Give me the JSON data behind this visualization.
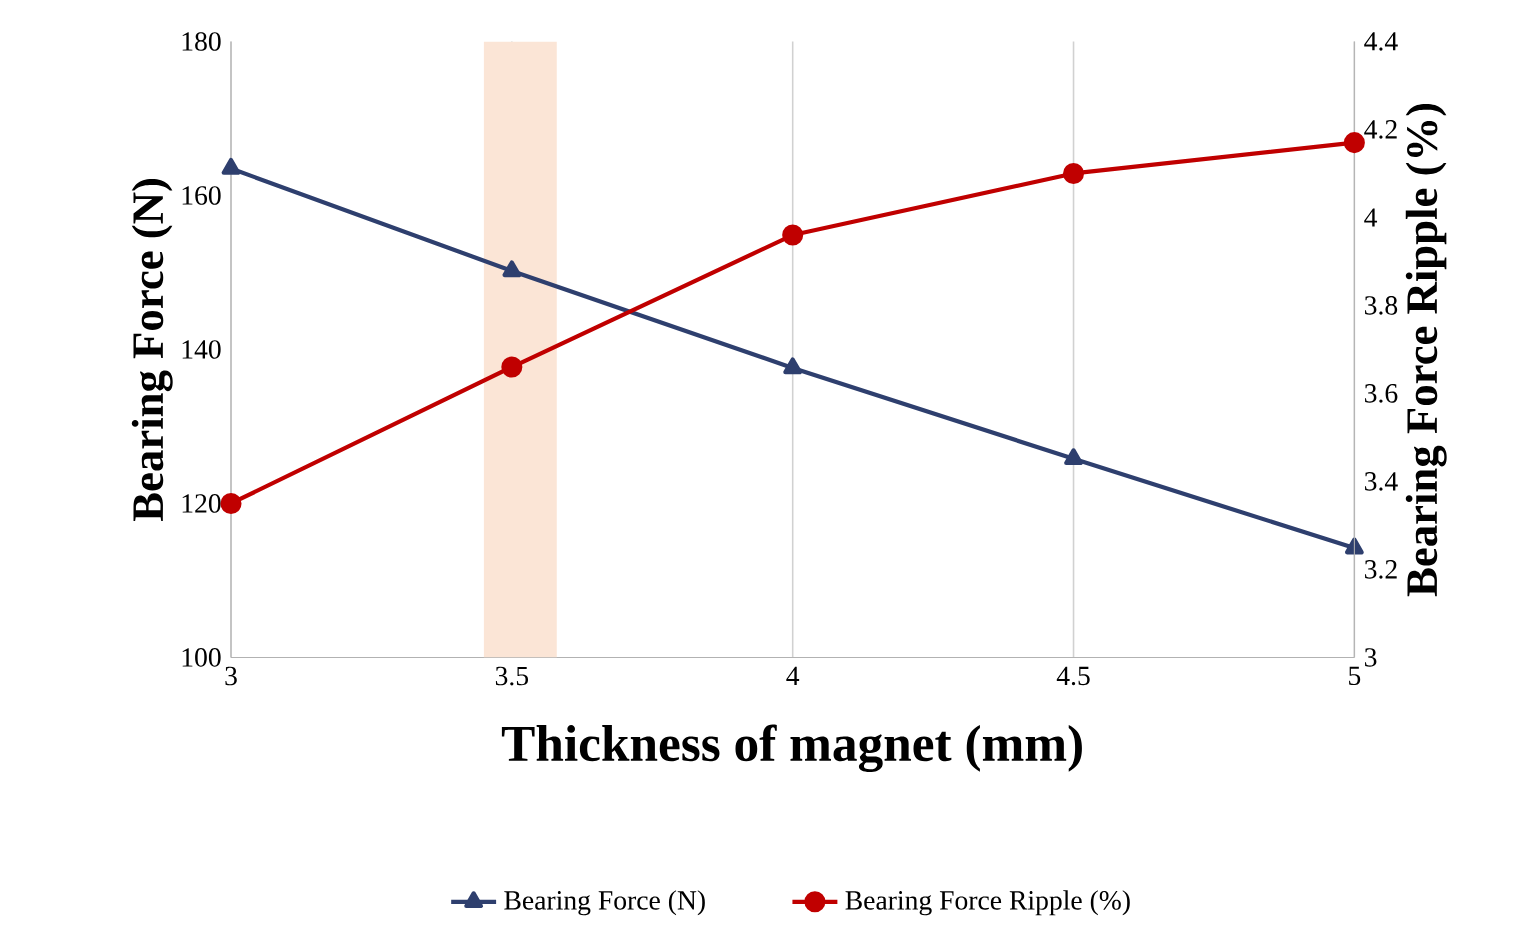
{
  "chart_data": {
    "type": "line",
    "xlabel": "Thickness of magnet (mm)",
    "ylabel": "Bearing  Force (N)",
    "y2label": "Bearing Force Ripple (%)",
    "x": [
      3,
      3.5,
      4,
      4.5,
      5
    ],
    "xlim": [
      3,
      5
    ],
    "xticks": [
      3,
      3.5,
      4,
      4.5,
      5
    ],
    "ylim": [
      100,
      180
    ],
    "yticks": [
      100,
      120,
      140,
      160,
      180
    ],
    "y2lim": [
      3,
      4.4
    ],
    "y2ticks": [
      3,
      3.2,
      3.4,
      3.6,
      3.8,
      4,
      4.2,
      4.4
    ],
    "grid": "x",
    "legend": "bottom",
    "series": [
      {
        "name": "Bearing Force (N)",
        "color": "#2e3f6e",
        "marker": "triangle",
        "values": [
          163.5,
          150.2,
          137.6,
          125.8,
          114.2
        ]
      },
      {
        "name": "Bearing Force Ripple (%)",
        "color": "#c00000",
        "marker": "circle",
        "axis": "y2",
        "values": [
          3.35,
          3.66,
          3.96,
          4.1,
          4.17
        ]
      }
    ],
    "bands": [
      {
        "axis": "x",
        "from": 3.45,
        "to": 3.58,
        "color": "#fbe5d6"
      }
    ]
  }
}
